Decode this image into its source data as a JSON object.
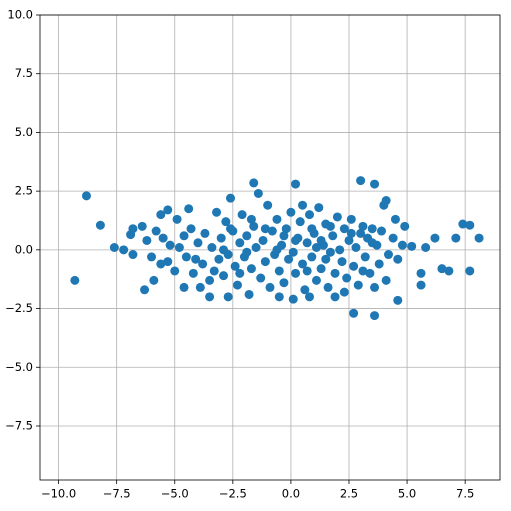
{
  "chart_data": {
    "type": "scatter",
    "color": "#1f77b4",
    "grid": true,
    "xlim": [
      -10.8,
      9.0
    ],
    "ylim": [
      -9.8,
      10.0
    ],
    "xticks": [
      {
        "value": -10,
        "label": "−10.0"
      },
      {
        "value": -7.5,
        "label": "−7.5"
      },
      {
        "value": -5,
        "label": "−5.0"
      },
      {
        "value": -2.5,
        "label": "−2.5"
      },
      {
        "value": 0,
        "label": "0.0"
      },
      {
        "value": 2.5,
        "label": "2.5"
      },
      {
        "value": 5,
        "label": "5.0"
      },
      {
        "value": 7.5,
        "label": "7.5"
      }
    ],
    "yticks": [
      {
        "value": -7.5,
        "label": "−7.5"
      },
      {
        "value": -5,
        "label": "−5.0"
      },
      {
        "value": -2.5,
        "label": "−2.5"
      },
      {
        "value": 0,
        "label": "0.0"
      },
      {
        "value": 2.5,
        "label": "2.5"
      },
      {
        "value": 5,
        "label": "5.0"
      },
      {
        "value": 7.5,
        "label": "7.5"
      },
      {
        "value": 10,
        "label": "10.0"
      }
    ],
    "x": [
      -9.3,
      -8.8,
      -8.2,
      -7.6,
      -7.2,
      -6.9,
      -6.8,
      -6.8,
      -6.3,
      -6.4,
      -5.9,
      -5.6,
      -5.3,
      -4.4,
      -1.6,
      0.2,
      3.0,
      3.6,
      4.1,
      2.7,
      3.6,
      4.6,
      5.6,
      6.5,
      6.8,
      7.4,
      7.7,
      8.1,
      7.7,
      7.1,
      6.2,
      5.8,
      5.2,
      5.6,
      0.1,
      -0.5,
      0.8,
      1.9,
      -3.5,
      -2.7,
      -4.6,
      -5.5,
      -5.3,
      -5.2,
      -5.0,
      -4.8,
      -4.5,
      -4.3,
      -4.2,
      -4.0,
      -3.8,
      -3.7,
      -3.5,
      -3.4,
      -3.2,
      -3.1,
      -3.0,
      -2.9,
      -2.8,
      -2.7,
      -2.6,
      -2.5,
      -2.4,
      -2.3,
      -2.2,
      -2.1,
      -2.0,
      -1.9,
      -1.8,
      -1.7,
      -1.6,
      -1.5,
      -1.4,
      -1.3,
      -1.2,
      -1.1,
      -1.0,
      -0.9,
      -0.8,
      -0.7,
      -0.6,
      -0.5,
      -0.4,
      -0.3,
      -0.2,
      -0.1,
      0.0,
      0.1,
      0.2,
      0.3,
      0.4,
      0.5,
      0.6,
      0.7,
      0.8,
      0.9,
      1.0,
      1.1,
      1.2,
      1.3,
      1.4,
      1.5,
      1.6,
      1.7,
      1.8,
      1.9,
      2.0,
      2.1,
      2.2,
      2.3,
      2.4,
      2.5,
      2.6,
      2.7,
      2.8,
      2.9,
      3.0,
      3.1,
      3.2,
      3.3,
      3.4,
      3.5,
      3.6,
      3.7,
      3.8,
      3.9,
      4.0,
      4.2,
      4.4,
      4.5,
      4.6,
      4.8,
      4.9,
      -6.0,
      -6.2,
      -5.8,
      -5.6,
      -4.9,
      -4.6,
      -3.9,
      -3.3,
      -2.9,
      -2.2,
      -1.7,
      -1.1,
      -0.6,
      0.2,
      0.5,
      0.9,
      1.3,
      1.7,
      2.3,
      3.1,
      3.5,
      4.1,
      -0.3,
      0.7,
      1.1,
      -2.6,
      -1.9,
      -4.1,
      2.6,
      1.5
    ],
    "y": [
      -1.3,
      2.3,
      1.05,
      0.1,
      0,
      0.65,
      0.9,
      -0.2,
      -1.7,
      1.0,
      -1.3,
      1.5,
      1.7,
      1.75,
      2.85,
      2.8,
      2.95,
      2.8,
      2.1,
      -2.7,
      -2.8,
      -2.15,
      -1.5,
      -0.8,
      -0.9,
      1.1,
      1.05,
      0.5,
      -0.9,
      0.5,
      0.5,
      0.1,
      0.15,
      -1.0,
      -2.1,
      -2.0,
      -2.0,
      -2.0,
      -2.0,
      -2.0,
      -1.6,
      0.5,
      -0.5,
      0.2,
      -0.9,
      0.1,
      -0.3,
      0.9,
      -1.0,
      0.3,
      -0.6,
      0.7,
      -1.3,
      0.1,
      1.6,
      -0.4,
      0.5,
      -1.1,
      1.2,
      -0.2,
      2.2,
      0.8,
      -0.7,
      -1.5,
      0.3,
      1.5,
      -0.3,
      0.6,
      -1.9,
      -0.8,
      1.0,
      0.1,
      2.4,
      -1.2,
      0.4,
      -0.5,
      1.9,
      -1.6,
      0.8,
      -0.2,
      1.3,
      -0.9,
      0.2,
      -1.4,
      0.9,
      -0.4,
      1.6,
      -0.1,
      -1.0,
      0.5,
      1.2,
      -0.6,
      -1.7,
      0.3,
      1.5,
      -0.3,
      0.7,
      -1.3,
      1.8,
      -0.8,
      0.2,
      1.1,
      -1.6,
      -0.1,
      0.6,
      -1.0,
      1.4,
      0.0,
      -0.5,
      0.9,
      -1.2,
      0.4,
      1.3,
      -0.7,
      0.1,
      -1.5,
      0.7,
      1.0,
      -0.3,
      0.5,
      -1.0,
      0.9,
      -1.6,
      0.2,
      -0.6,
      0.8,
      1.9,
      -0.2,
      0.5,
      1.3,
      -0.4,
      0.2,
      1.0,
      -0.3,
      0.4,
      0.8,
      -0.6,
      1.3,
      0.6,
      -1.6,
      -0.9,
      0.0,
      -1.0,
      1.3,
      0.9,
      0.0,
      0.4,
      1.9,
      0.9,
      0.4,
      1.0,
      -1.8,
      -0.9,
      0.3,
      -1.3,
      0.6,
      -0.9,
      0.1,
      0.9,
      -0.1,
      -0.4,
      0.7,
      -0.4
    ]
  }
}
